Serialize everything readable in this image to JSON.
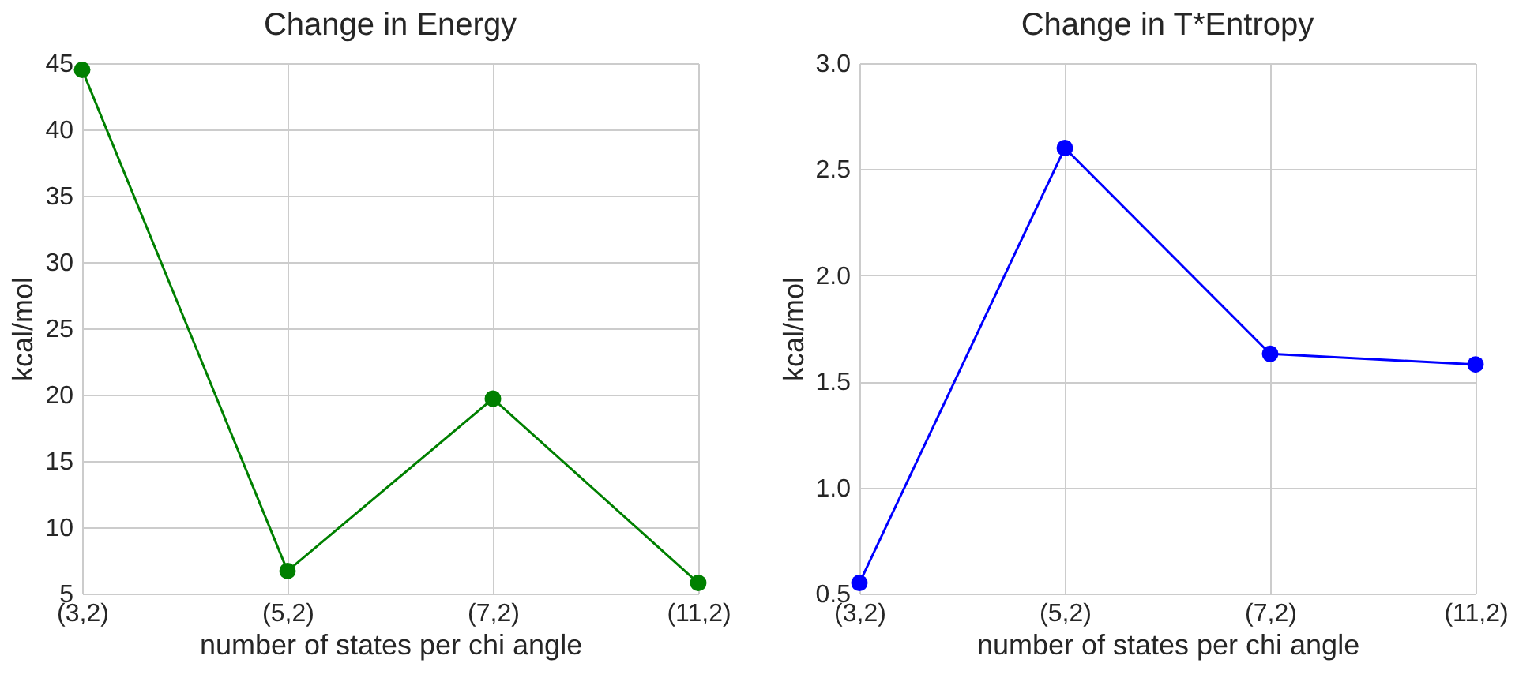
{
  "chart_data": [
    {
      "type": "line",
      "title": "Change in Energy",
      "xlabel": "number of states per chi angle",
      "ylabel": "kcal/mol",
      "categories": [
        "(3,2)",
        "(5,2)",
        "(7,2)",
        "(11,2)"
      ],
      "ylim": [
        5,
        45
      ],
      "yticks": [
        5,
        10,
        15,
        20,
        25,
        30,
        35,
        40,
        45
      ],
      "grid": true,
      "marker": "circle",
      "line_style": "solid",
      "series": [
        {
          "color": "#008000",
          "values": [
            44.5,
            6.7,
            19.7,
            5.8
          ]
        }
      ]
    },
    {
      "type": "line",
      "title": "Change in T*Entropy",
      "xlabel": "number of states per chi angle",
      "ylabel": "kcal/mol",
      "categories": [
        "(3,2)",
        "(5,2)",
        "(7,2)",
        "(11,2)"
      ],
      "ylim": [
        0.5,
        3.0
      ],
      "yticks": [
        0.5,
        {
          "value": 1,
          "label": "1.0"
        },
        1.5,
        {
          "value": 2,
          "label": "2.0"
        },
        2.5,
        {
          "value": 3,
          "label": "3.0"
        }
      ],
      "grid": true,
      "marker": "circle",
      "line_style": "solid",
      "series": [
        {
          "color": "#0000ff",
          "values": [
            0.55,
            2.6,
            1.63,
            1.58
          ]
        }
      ]
    }
  ]
}
